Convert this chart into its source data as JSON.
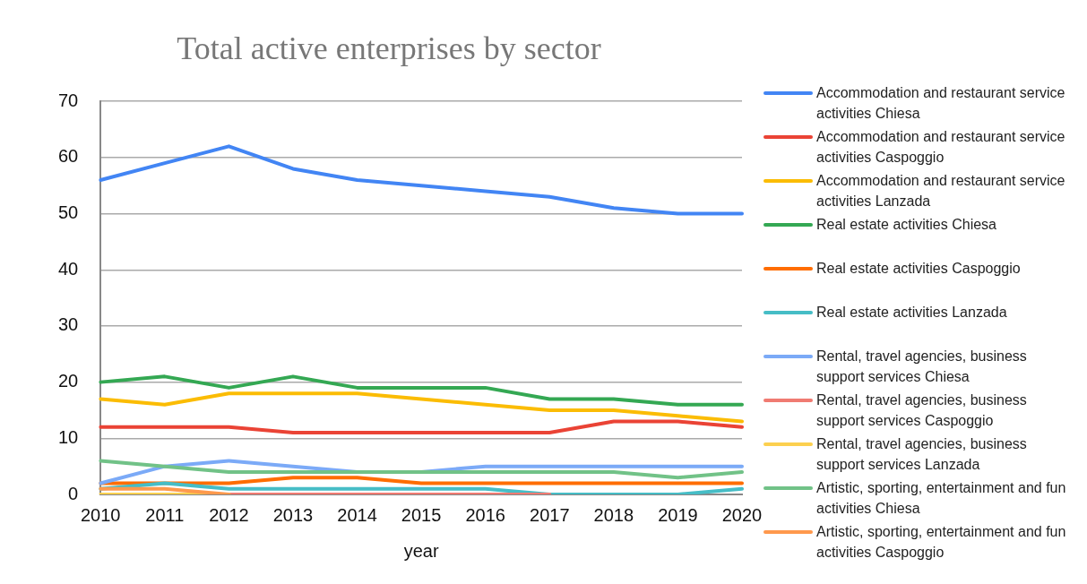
{
  "chart_data": {
    "type": "line",
    "title": "Total active enterprises by sector",
    "xlabel": "year",
    "categories": [
      "2010",
      "2011",
      "2012",
      "2013",
      "2014",
      "2015",
      "2016",
      "2017",
      "2018",
      "2019",
      "2020"
    ],
    "ylim": [
      0,
      70
    ],
    "yticks": [
      0,
      10,
      20,
      30,
      40,
      50,
      60,
      70
    ],
    "grid": "y",
    "legend": "right",
    "marker": "none",
    "line_style": "solid",
    "series": [
      {
        "name": "Accommodation and restaurant service activities Chiesa",
        "color": "#4285f4",
        "values": [
          56,
          59,
          62,
          58,
          56,
          55,
          54,
          53,
          51,
          50,
          50
        ]
      },
      {
        "name": "Accommodation and restaurant service activities Caspoggio",
        "color": "#ea4335",
        "values": [
          12,
          12,
          12,
          11,
          11,
          11,
          11,
          11,
          13,
          13,
          12
        ]
      },
      {
        "name": "Accommodation and restaurant service activities Lanzada",
        "color": "#fbbc04",
        "values": [
          17,
          16,
          18,
          18,
          18,
          17,
          16,
          15,
          15,
          14,
          13
        ]
      },
      {
        "name": "Real estate activities Chiesa",
        "color": "#34a853",
        "values": [
          20,
          21,
          19,
          21,
          19,
          19,
          19,
          17,
          17,
          16,
          16
        ]
      },
      {
        "name": "Real estate activities Caspoggio",
        "color": "#ff6d01",
        "values": [
          2,
          2,
          2,
          3,
          3,
          2,
          2,
          2,
          2,
          2,
          2
        ]
      },
      {
        "name": "Real estate activities Lanzada",
        "color": "#46bdc6",
        "values": [
          1,
          2,
          1,
          1,
          1,
          1,
          1,
          0,
          0,
          0,
          1
        ]
      },
      {
        "name": "Rental, travel agencies, business support services Chiesa",
        "color": "#7baaf7",
        "values": [
          2,
          5,
          6,
          5,
          4,
          4,
          5,
          5,
          5,
          5,
          5
        ]
      },
      {
        "name": "Rental, travel agencies, business support services Caspoggio",
        "color": "#f07b72",
        "values": [
          null,
          null,
          0,
          0,
          0,
          0,
          0,
          0,
          null,
          null,
          null
        ]
      },
      {
        "name": "Rental, travel agencies, business support services Lanzada",
        "color": "#fcd04f",
        "values": [
          0,
          0,
          0,
          null,
          null,
          null,
          null,
          null,
          null,
          null,
          null
        ]
      },
      {
        "name": "Artistic, sporting, entertainment and fun activities Chiesa",
        "color": "#71c287",
        "values": [
          6,
          5,
          4,
          4,
          4,
          4,
          4,
          4,
          4,
          3,
          4
        ]
      },
      {
        "name": "Artistic, sporting, entertainment and fun activities Caspoggio",
        "color": "#ff994d",
        "values": [
          1,
          1,
          0,
          null,
          null,
          null,
          null,
          null,
          null,
          null,
          null
        ]
      }
    ]
  }
}
